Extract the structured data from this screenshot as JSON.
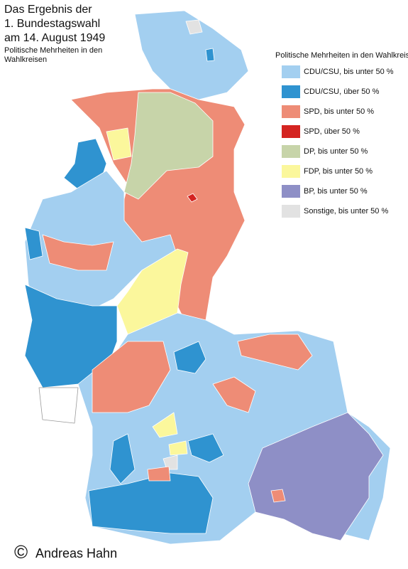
{
  "title": [
    "Das Ergebnis der",
    "1. Bundestagswahl",
    "am 14. August 1949"
  ],
  "subtitle": [
    "Politische Mehrheiten in den",
    "Wahlkreisen"
  ],
  "legend": {
    "title": "Politische Mehrheiten in den Wahlkreisen",
    "items": [
      {
        "label": "CDU/CSU, bis unter 50 %",
        "color": "#a3cff0"
      },
      {
        "label": "CDU/CSU, über 50 %",
        "color": "#2f93d0"
      },
      {
        "label": "SPD, bis unter 50 %",
        "color": "#ee8c76"
      },
      {
        "label": "SPD, über 50 %",
        "color": "#d42421"
      },
      {
        "label": "DP, bis unter 50 %",
        "color": "#c7d4a9"
      },
      {
        "label": "FDP, bis unter 50 %",
        "color": "#fbf79c"
      },
      {
        "label": "BP, bis unter 50 %",
        "color": "#8e8fc6"
      },
      {
        "label": "Sonstige, bis unter 50 %",
        "color": "#e2e2e2"
      }
    ]
  },
  "credit": {
    "symbol": "©",
    "name": "Andreas Hahn"
  }
}
